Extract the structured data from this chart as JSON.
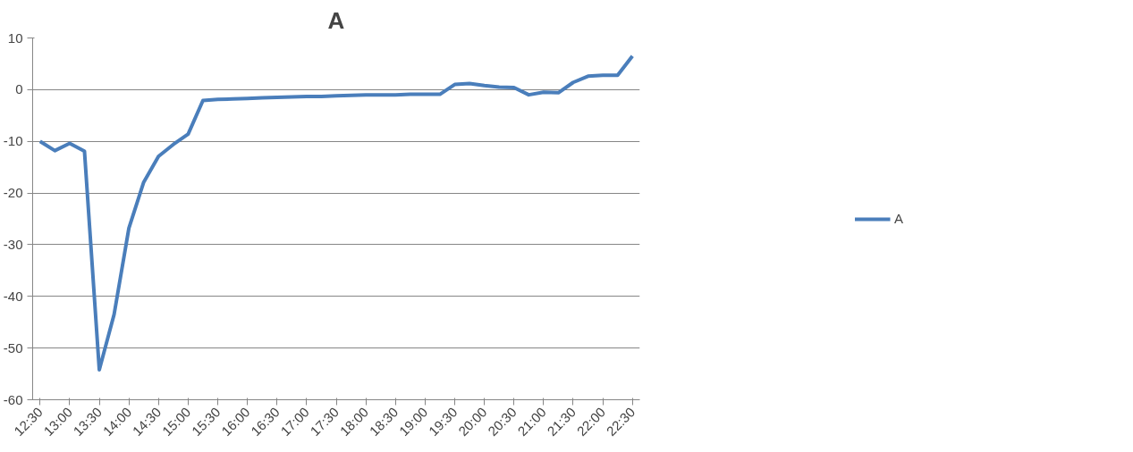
{
  "chart_data": {
    "type": "line",
    "title": "A",
    "x": [
      12.5,
      12.75,
      13,
      13.25,
      13.5,
      13.75,
      14,
      14.25,
      14.5,
      14.75,
      15,
      15.25,
      15.5,
      15.75,
      16,
      16.25,
      16.5,
      16.75,
      17,
      17.25,
      17.5,
      17.75,
      18,
      18.25,
      18.5,
      18.75,
      19,
      19.25,
      19.5,
      19.75,
      20,
      20.25,
      20.5,
      20.75,
      21,
      21.25,
      21.5,
      21.75,
      22,
      22.25,
      22.5
    ],
    "series": [
      {
        "name": "A",
        "color": "#4a7ebb",
        "values": [
          -10.0,
          -11.8,
          -10.4,
          -11.9,
          -54.2,
          -43.5,
          -26.8,
          -17.9,
          -12.9,
          -10.6,
          -8.6,
          -2.1,
          -1.9,
          -1.8,
          -1.7,
          -1.6,
          -1.5,
          -1.4,
          -1.3,
          -1.3,
          -1.2,
          -1.1,
          -1.0,
          -1.0,
          -1.0,
          -0.9,
          -0.9,
          -0.9,
          1.0,
          1.2,
          0.8,
          0.5,
          0.4,
          -1.0,
          -0.5,
          -0.6,
          1.4,
          2.6,
          2.8,
          2.8,
          6.5
        ]
      }
    ],
    "xlim": [
      12.375,
      22.625
    ],
    "xticks": [
      {
        "value": 12.5,
        "label": "12:30"
      },
      {
        "value": 13,
        "label": "13:00"
      },
      {
        "value": 13.5,
        "label": "13:30"
      },
      {
        "value": 14,
        "label": "14:00"
      },
      {
        "value": 14.5,
        "label": "14:30"
      },
      {
        "value": 15,
        "label": "15:00"
      },
      {
        "value": 15.5,
        "label": "15:30"
      },
      {
        "value": 16,
        "label": "16:00"
      },
      {
        "value": 16.5,
        "label": "16:30"
      },
      {
        "value": 17,
        "label": "17:00"
      },
      {
        "value": 17.5,
        "label": "17:30"
      },
      {
        "value": 18,
        "label": "18:00"
      },
      {
        "value": 18.5,
        "label": "18:30"
      },
      {
        "value": 19,
        "label": "19:00"
      },
      {
        "value": 19.5,
        "label": "19:30"
      },
      {
        "value": 20,
        "label": "20:00"
      },
      {
        "value": 20.5,
        "label": "20:30"
      },
      {
        "value": 21,
        "label": "21:00"
      },
      {
        "value": 21.5,
        "label": "21:30"
      },
      {
        "value": 22,
        "label": "22:00"
      },
      {
        "value": 22.5,
        "label": "22:30"
      }
    ],
    "ylim": [
      -60,
      10
    ],
    "yticks": [
      10,
      0,
      -10,
      -20,
      -30,
      -40,
      -50,
      -60
    ],
    "grid": "y",
    "legend": "right",
    "marker": "none",
    "line_style": "solid"
  }
}
